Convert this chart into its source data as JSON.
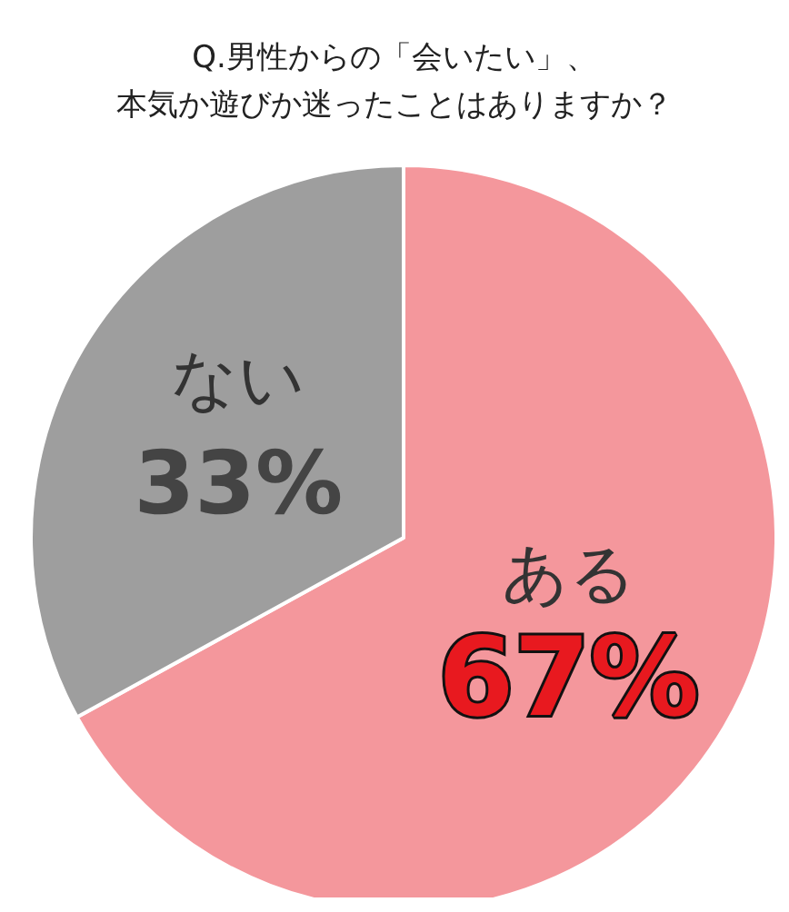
{
  "chart_data": {
    "type": "pie",
    "title": "Q.男性からの「会いたい」、本気か遊びか迷ったことはありますか？",
    "categories": [
      "ある",
      "ない"
    ],
    "values": [
      67,
      33
    ],
    "value_labels": [
      "67%",
      "33%"
    ],
    "colors": [
      "#f4979c",
      "#9e9e9e"
    ],
    "legend": false
  }
}
